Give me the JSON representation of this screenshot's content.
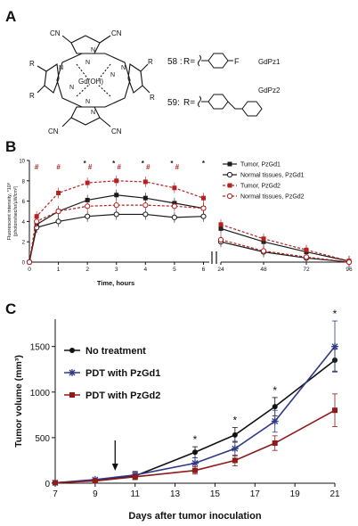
{
  "panel_labels": {
    "a": "A",
    "b": "B",
    "c": "C"
  },
  "panel_a": {
    "substituents": [
      "CN",
      "CN",
      "R",
      "R",
      "CN",
      "CN",
      "R",
      "R"
    ],
    "metal": "Gd(OH)",
    "ring_n": [
      "N",
      "N",
      "N",
      "N",
      "N",
      "N",
      "N",
      "N"
    ],
    "compound_58": {
      "label": "58 :",
      "r_eq": "R=",
      "atom": "F",
      "name": "GdPz1"
    },
    "compound_59": {
      "label": "59:",
      "r_eq": "R=",
      "name": "GdPz2"
    }
  },
  "chart_data": [
    {
      "type": "line",
      "title": "",
      "xlabel": "Time, hours",
      "ylabel": "Fluorescent intensity, *10⁸",
      "ylabel2": "(photons/sec/sr/µW/cm²)",
      "yticks": [
        0,
        2,
        4,
        6,
        8,
        10
      ],
      "ylim": [
        0,
        10
      ],
      "x_segments": [
        {
          "ticks": [
            0,
            1,
            2,
            3,
            4,
            5,
            6
          ],
          "range": [
            0,
            6.2
          ]
        },
        {
          "ticks": [
            24,
            48,
            72,
            96
          ],
          "range": [
            24,
            96
          ]
        }
      ],
      "legend_position": "right",
      "series": [
        {
          "name": "Tumor, PzGd1",
          "color": "#1a1a1a",
          "marker": "square-filled",
          "dash": false,
          "x": [
            0,
            0.25,
            1,
            2,
            3,
            4,
            5,
            6,
            24,
            48,
            72,
            96
          ],
          "y": [
            0,
            3.7,
            5.0,
            6.1,
            6.6,
            6.3,
            5.8,
            5.3,
            3.3,
            2.0,
            1.0,
            0.1
          ]
        },
        {
          "name": "Normal tissues, PzGd1",
          "color": "#1a1a1a",
          "marker": "circle-open",
          "dash": false,
          "x": [
            0,
            0.25,
            1,
            2,
            3,
            4,
            5,
            6,
            24,
            48,
            72,
            96
          ],
          "y": [
            0,
            3.4,
            4.0,
            4.5,
            4.7,
            4.7,
            4.4,
            4.5,
            2.0,
            1.0,
            0.4,
            0.0
          ]
        },
        {
          "name": "Tumor, PzGd2",
          "color": "#b52020",
          "marker": "square-filled",
          "dash": true,
          "x": [
            0,
            0.25,
            1,
            2,
            3,
            4,
            5,
            6,
            24,
            48,
            72,
            96
          ],
          "y": [
            0,
            4.5,
            6.8,
            7.8,
            8.0,
            7.9,
            7.3,
            6.3,
            3.7,
            2.3,
            1.2,
            0.1
          ]
        },
        {
          "name": "Normal tissues, PzGd2",
          "color": "#b52020",
          "marker": "circle-open",
          "dash": true,
          "x": [
            0,
            0.25,
            1,
            2,
            3,
            4,
            5,
            6,
            24,
            48,
            72,
            96
          ],
          "y": [
            0,
            4.0,
            5.0,
            5.5,
            5.6,
            5.6,
            5.5,
            5.3,
            2.2,
            1.1,
            0.5,
            0.0
          ]
        }
      ],
      "annotations": [
        {
          "x": 0.25,
          "text": "#",
          "color": "#b52020"
        },
        {
          "x": 1,
          "text": "#",
          "color": "#b52020"
        },
        {
          "x": 2,
          "text": "*",
          "color": "#1a1a1a"
        },
        {
          "x": 2,
          "text": "#",
          "color": "#b52020"
        },
        {
          "x": 3,
          "text": "*",
          "color": "#1a1a1a"
        },
        {
          "x": 3,
          "text": "#",
          "color": "#b52020"
        },
        {
          "x": 4,
          "text": "*",
          "color": "#1a1a1a"
        },
        {
          "x": 4,
          "text": "#",
          "color": "#b52020"
        },
        {
          "x": 5,
          "text": "*",
          "color": "#1a1a1a"
        },
        {
          "x": 5,
          "text": "#",
          "color": "#b52020"
        },
        {
          "x": 6,
          "text": "*",
          "color": "#1a1a1a"
        }
      ]
    },
    {
      "type": "line",
      "title": "",
      "xlabel": "Days after tumor inoculation",
      "ylabel": "Tumor volume (mm³)",
      "xticks": [
        7,
        9,
        11,
        13,
        15,
        17,
        19,
        21
      ],
      "xlim": [
        7,
        21
      ],
      "yticks": [
        0,
        500,
        1000,
        1500
      ],
      "ylim": [
        0,
        1800
      ],
      "legend_position": "top-left",
      "arrow_day": 10,
      "series": [
        {
          "name": "No treatment",
          "color": "#111111",
          "marker": "circle-filled",
          "x": [
            7,
            9,
            11,
            14,
            16,
            18,
            21
          ],
          "y": [
            5,
            30,
            80,
            340,
            530,
            840,
            1350
          ],
          "err": [
            0,
            10,
            40,
            60,
            80,
            100,
            120
          ]
        },
        {
          "name": "PDT with PzGd1",
          "color": "#2e3a86",
          "marker": "star",
          "x": [
            7,
            9,
            11,
            14,
            16,
            18,
            21
          ],
          "y": [
            5,
            40,
            90,
            220,
            380,
            680,
            1500
          ],
          "err": [
            0,
            10,
            40,
            60,
            80,
            120,
            280
          ]
        },
        {
          "name": "PDT with PzGd2",
          "color": "#8e1a1a",
          "marker": "square-filled",
          "x": [
            7,
            9,
            11,
            14,
            16,
            18,
            21
          ],
          "y": [
            5,
            25,
            70,
            140,
            250,
            440,
            800
          ],
          "err": [
            0,
            8,
            30,
            40,
            60,
            80,
            180
          ]
        }
      ],
      "annotations": [
        {
          "x": 14,
          "text": "*"
        },
        {
          "x": 16,
          "text": "*"
        },
        {
          "x": 18,
          "text": "*"
        },
        {
          "x": 21,
          "text": "*"
        }
      ]
    }
  ]
}
